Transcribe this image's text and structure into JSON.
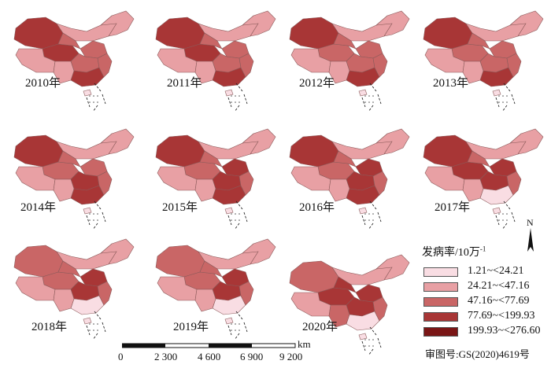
{
  "panels": [
    {
      "year": "2010年",
      "c": [
        "d",
        "d",
        "l",
        "l",
        "m",
        "m",
        "m",
        "d",
        "l",
        "m",
        "l",
        "s"
      ]
    },
    {
      "year": "2011年",
      "c": [
        "d",
        "d",
        "l",
        "l",
        "m",
        "m",
        "m",
        "d",
        "l",
        "m",
        "l",
        "s"
      ]
    },
    {
      "year": "2012年",
      "c": [
        "d",
        "m",
        "l",
        "l",
        "m",
        "m",
        "m",
        "d",
        "l",
        "m",
        "l",
        "s"
      ]
    },
    {
      "year": "2013年",
      "c": [
        "d",
        "m",
        "l",
        "l",
        "m",
        "m",
        "m",
        "d",
        "l",
        "m",
        "l",
        "s"
      ]
    },
    {
      "year": "2014年",
      "c": [
        "d",
        "m",
        "l",
        "l",
        "m",
        "m",
        "d",
        "d",
        "l",
        "m",
        "l",
        "s"
      ]
    },
    {
      "year": "2015年",
      "c": [
        "d",
        "m",
        "l",
        "l",
        "m",
        "d",
        "d",
        "d",
        "l",
        "m",
        "l",
        "s"
      ]
    },
    {
      "year": "2016年",
      "c": [
        "d",
        "m",
        "l",
        "l",
        "m",
        "d",
        "d",
        "d",
        "l",
        "m",
        "l",
        "s"
      ]
    },
    {
      "year": "2017年",
      "c": [
        "d",
        "d",
        "l",
        "l",
        "m",
        "d",
        "d",
        "s",
        "l",
        "m",
        "l",
        "s"
      ]
    },
    {
      "year": "2018年",
      "c": [
        "m",
        "m",
        "l",
        "l",
        "m",
        "d",
        "d",
        "s",
        "l",
        "m",
        "l",
        "s"
      ]
    },
    {
      "year": "2019年",
      "c": [
        "m",
        "m",
        "l",
        "l",
        "m",
        "d",
        "d",
        "s",
        "l",
        "m",
        "l",
        "s"
      ]
    },
    {
      "year": "2020年",
      "c": [
        "m",
        "d",
        "l",
        "l",
        "d",
        "d",
        "d",
        "s",
        "m",
        "m",
        "l",
        "s"
      ]
    }
  ],
  "legend": {
    "title": "发病率/10万",
    "title_sup": "-1",
    "items": [
      {
        "label": "1.21~<24.21",
        "color": "#f9dde3"
      },
      {
        "label": "24.21~<47.16",
        "color": "#e8a0a4"
      },
      {
        "label": "47.16~<77.69",
        "color": "#c96666"
      },
      {
        "label": "77.69~<199.93",
        "color": "#a83636"
      },
      {
        "label": "199.93~<276.60",
        "color": "#7a1616"
      }
    ]
  },
  "north": "N",
  "scale": {
    "unit": "km",
    "ticks": [
      "0",
      "2 300",
      "4 600",
      "6 900",
      "9 200"
    ]
  },
  "review_number": "审图号:GS(2020)4619号"
}
